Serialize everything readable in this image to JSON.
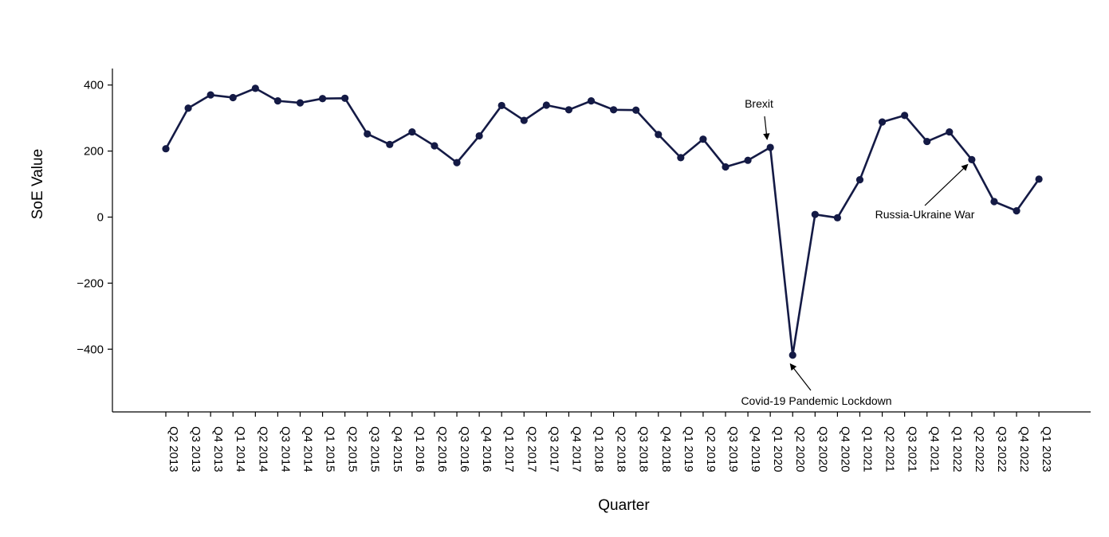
{
  "chart_data": {
    "type": "line",
    "title": "",
    "xlabel": "Quarter",
    "ylabel": "SoE Value",
    "ylim": [
      -590,
      450
    ],
    "yticks": [
      400,
      200,
      0,
      -200,
      -400
    ],
    "grid": false,
    "line_color": "#141a45",
    "categories": [
      "Q2 2013",
      "Q3 2013",
      "Q4 2013",
      "Q1 2014",
      "Q2 2014",
      "Q3 2014",
      "Q4 2014",
      "Q1 2015",
      "Q2 2015",
      "Q3 2015",
      "Q4 2015",
      "Q1 2016",
      "Q2 2016",
      "Q3 2016",
      "Q4 2016",
      "Q1 2017",
      "Q2 2017",
      "Q3 2017",
      "Q4 2017",
      "Q1 2018",
      "Q2 2018",
      "Q3 2018",
      "Q4 2018",
      "Q1 2019",
      "Q2 2019",
      "Q3 2019",
      "Q4 2019",
      "Q1 2020",
      "Q2 2020",
      "Q3 2020",
      "Q4 2020",
      "Q1 2021",
      "Q2 2021",
      "Q3 2021",
      "Q4 2021",
      "Q1 2022",
      "Q2 2022",
      "Q3 2022",
      "Q4 2022",
      "Q1 2023"
    ],
    "values": [
      207,
      330,
      370,
      362,
      390,
      352,
      346,
      359,
      360,
      252,
      220,
      258,
      216,
      165,
      246,
      338,
      293,
      339,
      325,
      352,
      325,
      324,
      250,
      180,
      236,
      152,
      172,
      211,
      -418,
      8,
      -2,
      113,
      288,
      308,
      229,
      258,
      174,
      47,
      19,
      115
    ],
    "annotations": [
      {
        "text": "Brexit",
        "category": "Q1 2020",
        "value": 211
      },
      {
        "text": "Covid-19 Pandemic Lockdown",
        "category": "Q2 2020",
        "value": -418
      },
      {
        "text": "Russia-Ukraine War",
        "category": "Q2 2022",
        "value": 174
      }
    ]
  }
}
